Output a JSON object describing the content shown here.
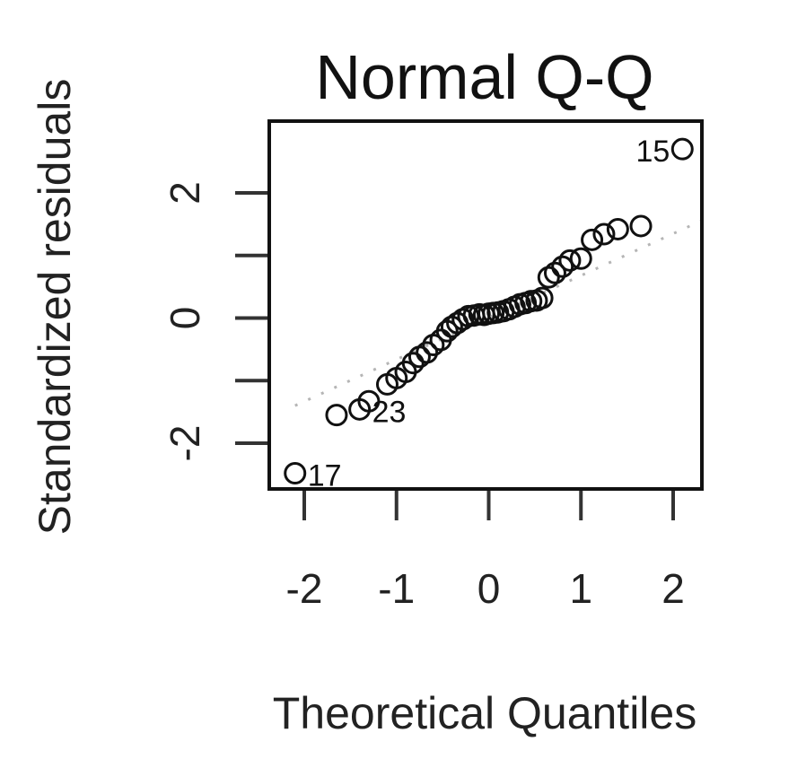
{
  "chart_data": {
    "type": "scatter",
    "title": "Normal Q-Q",
    "xlabel": "Theoretical Quantiles",
    "ylabel": "Standardized residuals",
    "xlim": [
      -2.3,
      2.3
    ],
    "ylim": [
      -2.7,
      3.15
    ],
    "xticks": [
      -2,
      -1,
      0,
      1,
      2
    ],
    "yticks": [
      -2,
      -1,
      0,
      1,
      2
    ],
    "ytick_labels": [
      "-2",
      "",
      "0",
      "",
      "2"
    ],
    "grid": false,
    "reference_line": {
      "style": "dotted",
      "color": "#b5b5b5",
      "x": [
        -2.1,
        2.3
      ],
      "y": [
        -1.4,
        1.55
      ]
    },
    "point_style": "open-circle",
    "points": [
      [
        -2.1,
        -2.48
      ],
      [
        -1.65,
        -1.55
      ],
      [
        -1.4,
        -1.46
      ],
      [
        -1.3,
        -1.33
      ],
      [
        -1.1,
        -1.06
      ],
      [
        -1.0,
        -0.96
      ],
      [
        -0.9,
        -0.86
      ],
      [
        -0.82,
        -0.72
      ],
      [
        -0.75,
        -0.62
      ],
      [
        -0.67,
        -0.55
      ],
      [
        -0.6,
        -0.43
      ],
      [
        -0.52,
        -0.35
      ],
      [
        -0.45,
        -0.21
      ],
      [
        -0.4,
        -0.14
      ],
      [
        -0.34,
        -0.08
      ],
      [
        -0.28,
        -0.02
      ],
      [
        -0.22,
        0.03
      ],
      [
        -0.16,
        0.04
      ],
      [
        -0.1,
        0.06
      ],
      [
        -0.05,
        0.05
      ],
      [
        0.0,
        0.07
      ],
      [
        0.05,
        0.08
      ],
      [
        0.1,
        0.09
      ],
      [
        0.16,
        0.11
      ],
      [
        0.22,
        0.14
      ],
      [
        0.28,
        0.18
      ],
      [
        0.34,
        0.22
      ],
      [
        0.4,
        0.24
      ],
      [
        0.46,
        0.27
      ],
      [
        0.52,
        0.28
      ],
      [
        0.58,
        0.32
      ],
      [
        0.65,
        0.65
      ],
      [
        0.72,
        0.72
      ],
      [
        0.8,
        0.82
      ],
      [
        0.88,
        0.92
      ],
      [
        1.0,
        0.95
      ],
      [
        1.12,
        1.25
      ],
      [
        1.25,
        1.34
      ],
      [
        1.4,
        1.42
      ],
      [
        1.65,
        1.47
      ],
      [
        2.1,
        2.7
      ]
    ],
    "labeled_points": [
      {
        "label": "15",
        "x": 2.1,
        "y": 2.7,
        "side": "left"
      },
      {
        "label": "23",
        "x": -1.4,
        "y": -1.46,
        "side": "right"
      },
      {
        "label": "17",
        "x": -2.1,
        "y": -2.48,
        "side": "right"
      }
    ]
  }
}
